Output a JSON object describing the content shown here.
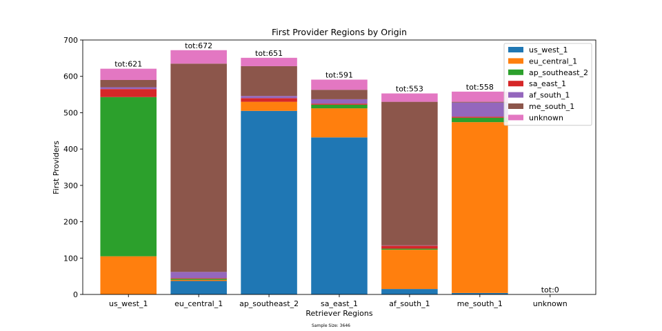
{
  "chart_data": {
    "type": "bar",
    "stacked": true,
    "title": "First Provider Regions by Origin",
    "xlabel": "Retriever Regions",
    "ylabel": "First Providers",
    "footnote": "Sample Size: 3646",
    "ylim": [
      0,
      700
    ],
    "yticks": [
      0,
      100,
      200,
      300,
      400,
      500,
      600,
      700
    ],
    "legend_position": "top-right",
    "categories": [
      "us_west_1",
      "eu_central_1",
      "ap_southeast_2",
      "sa_east_1",
      "af_south_1",
      "me_south_1",
      "unknown"
    ],
    "totals": [
      "tot:621",
      "tot:672",
      "tot:651",
      "tot:591",
      "tot:553",
      "tot:558",
      "tot:0"
    ],
    "series": [
      {
        "name": "us_west_1",
        "color": "#1f77b4",
        "values": [
          0,
          37,
          505,
          432,
          15,
          4,
          0
        ]
      },
      {
        "name": "eu_central_1",
        "color": "#ff7f0e",
        "values": [
          105,
          3,
          25,
          80,
          108,
          470,
          0
        ]
      },
      {
        "name": "ap_southeast_2",
        "color": "#2ca02c",
        "values": [
          438,
          3,
          0,
          10,
          3,
          12,
          0
        ]
      },
      {
        "name": "sa_east_1",
        "color": "#d62728",
        "values": [
          22,
          2,
          10,
          3,
          8,
          3,
          0
        ]
      },
      {
        "name": "af_south_1",
        "color": "#9467bd",
        "values": [
          5,
          17,
          6,
          12,
          1,
          39,
          0
        ]
      },
      {
        "name": "me_south_1",
        "color": "#8c564b",
        "values": [
          20,
          573,
          82,
          26,
          395,
          2,
          0
        ]
      },
      {
        "name": "unknown",
        "color": "#e377c2",
        "values": [
          31,
          37,
          23,
          28,
          23,
          28,
          0
        ]
      }
    ]
  }
}
